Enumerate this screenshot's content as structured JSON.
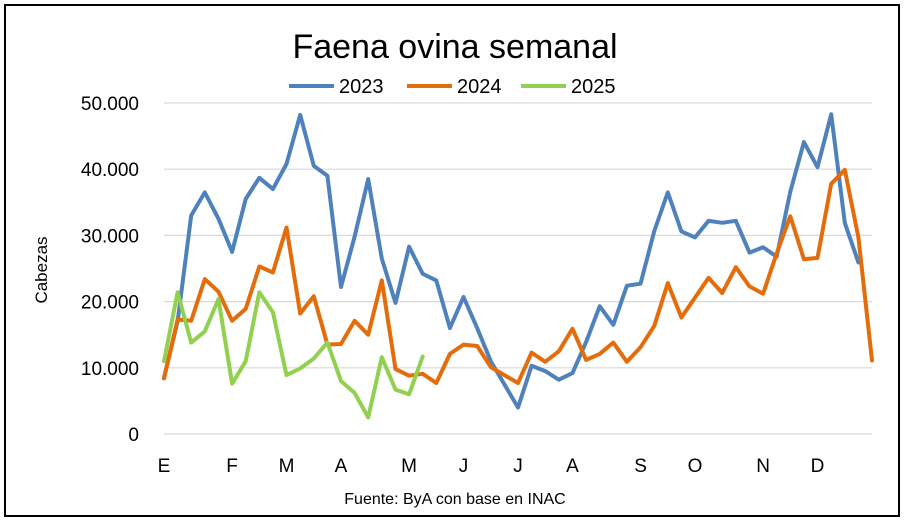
{
  "chart_data": {
    "type": "line",
    "title": "Faena ovina semanal",
    "ylabel": "Cabezas",
    "source": "Fuente: ByA con base en INAC",
    "ylim": [
      0,
      50000
    ],
    "y_tick_labels": [
      "0",
      "10.000",
      "20.000",
      "30.000",
      "40.000",
      "50.000"
    ],
    "y_ticks": [
      0,
      10000,
      20000,
      30000,
      40000,
      50000
    ],
    "x_tick_labels": [
      "E",
      "F",
      "M",
      "A",
      "M",
      "J",
      "J",
      "A",
      "S",
      "O",
      "N",
      "D"
    ],
    "x_tick_weeks": [
      1,
      6,
      10,
      14,
      19,
      23,
      27,
      31,
      36,
      40,
      45,
      49
    ],
    "weeks_total": 53,
    "grid": "horizontal",
    "legend_position": "top",
    "series": [
      {
        "name": "2023",
        "color": "#4f81bd",
        "values": [
          8500,
          17000,
          33000,
          36500,
          32500,
          27500,
          35500,
          38700,
          37000,
          40800,
          48200,
          40500,
          39000,
          22200,
          29800,
          38500,
          26500,
          19800,
          28300,
          24200,
          23200,
          16000,
          20700,
          16000,
          11000,
          7500,
          4000,
          10300,
          9500,
          8200,
          9200,
          13900,
          19300,
          16500,
          22400,
          22700,
          30600,
          36500,
          30600,
          29700,
          32200,
          31900,
          32200,
          27400,
          28200,
          26800,
          36600,
          44100,
          40300,
          48300,
          31900,
          25900
        ]
      },
      {
        "name": "2024",
        "color": "#e46c0a",
        "values": [
          8400,
          17300,
          17100,
          23400,
          21500,
          17100,
          18900,
          25300,
          24400,
          31200,
          18200,
          20800,
          13500,
          13600,
          17100,
          15000,
          23200,
          9800,
          8800,
          9100,
          7700,
          12100,
          13500,
          13300,
          10100,
          8900,
          7700,
          12300,
          10900,
          12500,
          15900,
          11200,
          12100,
          13800,
          10900,
          13100,
          16300,
          22800,
          17600,
          20600,
          23600,
          21300,
          25200,
          22300,
          21200,
          27300,
          32900,
          26400,
          26600,
          37800,
          39900,
          29700,
          11100
        ]
      },
      {
        "name": "2025",
        "color": "#92d050",
        "values": [
          11000,
          21400,
          13800,
          15500,
          20400,
          7600,
          11000,
          21400,
          18400,
          8900,
          9900,
          11400,
          13800,
          8000,
          6200,
          2500,
          11600,
          6700,
          6000,
          11700
        ]
      }
    ]
  }
}
